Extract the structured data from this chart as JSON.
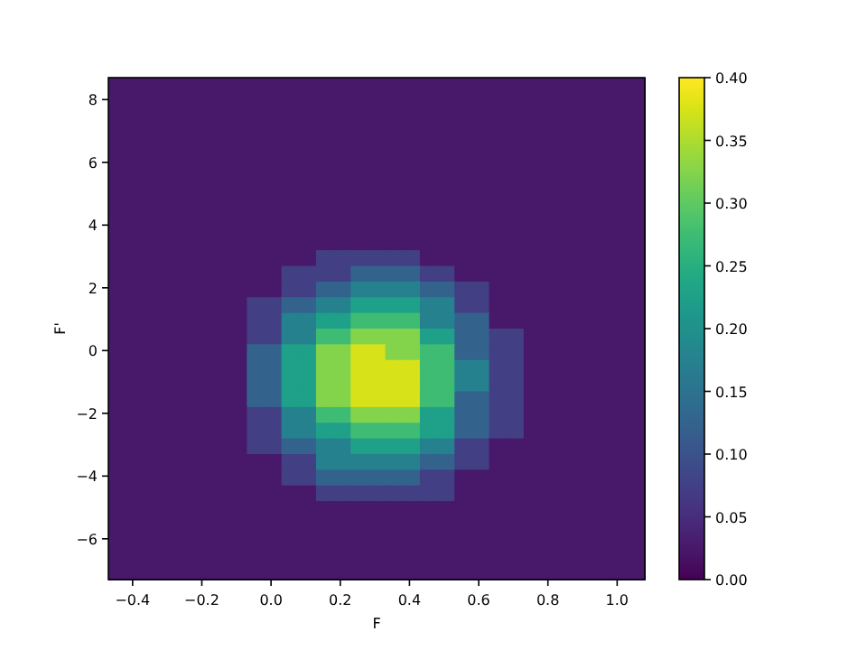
{
  "chart_data": {
    "type": "heatmap",
    "xlabel": "F",
    "ylabel": "F'",
    "xlim": [
      -0.47,
      1.08
    ],
    "ylim": [
      -7.3,
      8.7
    ],
    "xticks": [
      {
        "value": -0.4,
        "label": "−0.4"
      },
      {
        "value": -0.2,
        "label": "−0.2"
      },
      {
        "value": 0,
        "label": "0.0"
      },
      {
        "value": 0.2,
        "label": "0.2"
      },
      {
        "value": 0.4,
        "label": "0.4"
      },
      {
        "value": 0.6,
        "label": "0.6"
      },
      {
        "value": 0.8,
        "label": "0.8"
      },
      {
        "value": 1,
        "label": "1.0"
      }
    ],
    "yticks": [
      {
        "value": -6,
        "label": "−6"
      },
      {
        "value": -4,
        "label": "−4"
      },
      {
        "value": -2,
        "label": "−2"
      },
      0,
      2,
      4,
      6,
      8
    ],
    "clim": [
      0,
      0.4
    ],
    "cticks": [
      {
        "value": 0,
        "label": "0.00"
      },
      {
        "value": 0.05,
        "label": "0.05"
      },
      {
        "value": 0.1,
        "label": "0.10"
      },
      {
        "value": 0.15,
        "label": "0.15"
      },
      {
        "value": 0.2,
        "label": "0.20"
      },
      {
        "value": 0.25,
        "label": "0.25"
      },
      {
        "value": 0.3,
        "label": "0.30"
      },
      {
        "value": 0.35,
        "label": "0.35"
      },
      {
        "value": 0.4,
        "label": "0.40"
      }
    ],
    "x": [
      -0.445,
      -0.395,
      -0.345,
      -0.295,
      -0.245,
      -0.195,
      -0.145,
      -0.095,
      -0.045,
      0.005,
      0.055,
      0.105,
      0.155,
      0.205,
      0.255,
      0.305,
      0.355,
      0.405,
      0.455,
      0.505,
      0.555,
      0.605,
      0.655,
      0.705,
      0.755,
      0.805,
      0.855,
      0.905,
      0.955,
      1.005,
      1.055
    ],
    "y": [
      8.45,
      7.95,
      7.45,
      6.95,
      6.45,
      5.95,
      5.45,
      4.95,
      4.45,
      3.95,
      3.45,
      2.95,
      2.45,
      1.95,
      1.45,
      0.95,
      0.45,
      -0.05,
      -0.55,
      -1.05,
      -1.55,
      -2.05,
      -2.55,
      -3.05,
      -3.55,
      -4.05,
      -4.55,
      -5.05,
      -5.55,
      -6.05,
      -6.55,
      -7.05
    ],
    "cells": [
      [
        0.025,
        0.025,
        0.025,
        0.025,
        0.025,
        0.025,
        0.025,
        0.025,
        0.025,
        0.025,
        0.025,
        0.025,
        0.025,
        0.025,
        0.025,
        0.025,
        0.025,
        0.025,
        0.025,
        0.025,
        0.025,
        0.025,
        0.025,
        0.025,
        0.025,
        0.025,
        0.025,
        0.025,
        0.025,
        0.025,
        0.025
      ],
      [
        0.025,
        0.025,
        0.025,
        0.025,
        0.025,
        0.025,
        0.025,
        0.025,
        0.025,
        0.025,
        0.025,
        0.025,
        0.025,
        0.025,
        0.025,
        0.025,
        0.025,
        0.025,
        0.025,
        0.025,
        0.025,
        0.025,
        0.025,
        0.025,
        0.025,
        0.025,
        0.025,
        0.025,
        0.025,
        0.025,
        0.025
      ],
      [
        0.025,
        0.025,
        0.025,
        0.025,
        0.025,
        0.025,
        0.025,
        0.025,
        0.025,
        0.025,
        0.025,
        0.025,
        0.025,
        0.025,
        0.025,
        0.025,
        0.025,
        0.025,
        0.025,
        0.025,
        0.025,
        0.025,
        0.025,
        0.025,
        0.025,
        0.025,
        0.025,
        0.025,
        0.025,
        0.025,
        0.025
      ],
      [
        0.025,
        0.025,
        0.025,
        0.025,
        0.025,
        0.025,
        0.025,
        0.025,
        0.025,
        0.025,
        0.025,
        0.025,
        0.025,
        0.025,
        0.025,
        0.025,
        0.025,
        0.025,
        0.025,
        0.025,
        0.025,
        0.025,
        0.025,
        0.025,
        0.025,
        0.025,
        0.025,
        0.025,
        0.025,
        0.025,
        0.025
      ],
      [
        0.025,
        0.025,
        0.025,
        0.025,
        0.025,
        0.025,
        0.025,
        0.025,
        0.025,
        0.025,
        0.025,
        0.025,
        0.025,
        0.025,
        0.025,
        0.025,
        0.025,
        0.025,
        0.025,
        0.025,
        0.025,
        0.025,
        0.025,
        0.025,
        0.025,
        0.025,
        0.025,
        0.025,
        0.025,
        0.025,
        0.025
      ],
      [
        0.025,
        0.025,
        0.025,
        0.025,
        0.025,
        0.025,
        0.025,
        0.025,
        0.025,
        0.025,
        0.025,
        0.025,
        0.025,
        0.025,
        0.025,
        0.025,
        0.025,
        0.025,
        0.025,
        0.025,
        0.025,
        0.025,
        0.025,
        0.025,
        0.025,
        0.025,
        0.025,
        0.025,
        0.025,
        0.025,
        0.025
      ],
      [
        0.025,
        0.025,
        0.025,
        0.025,
        0.025,
        0.025,
        0.025,
        0.025,
        0.025,
        0.025,
        0.025,
        0.025,
        0.025,
        0.025,
        0.025,
        0.025,
        0.025,
        0.025,
        0.025,
        0.025,
        0.025,
        0.025,
        0.025,
        0.025,
        0.025,
        0.025,
        0.025,
        0.025,
        0.025,
        0.025,
        0.025
      ],
      [
        0.025,
        0.025,
        0.025,
        0.025,
        0.025,
        0.025,
        0.025,
        0.025,
        0.025,
        0.025,
        0.025,
        0.025,
        0.025,
        0.025,
        0.025,
        0.025,
        0.025,
        0.025,
        0.025,
        0.025,
        0.025,
        0.025,
        0.025,
        0.025,
        0.025,
        0.025,
        0.025,
        0.025,
        0.025,
        0.025,
        0.025
      ],
      [
        0.025,
        0.025,
        0.025,
        0.025,
        0.025,
        0.025,
        0.025,
        0.025,
        0.025,
        0.025,
        0.025,
        0.025,
        0.025,
        0.025,
        0.025,
        0.025,
        0.025,
        0.025,
        0.025,
        0.025,
        0.025,
        0.025,
        0.025,
        0.025,
        0.025,
        0.025,
        0.025,
        0.025,
        0.025,
        0.025,
        0.025
      ],
      [
        0.025,
        0.025,
        0.025,
        0.025,
        0.025,
        0.025,
        0.025,
        0.025,
        0.025,
        0.025,
        0.025,
        0.025,
        0.025,
        0.025,
        0.025,
        0.025,
        0.025,
        0.025,
        0.025,
        0.025,
        0.025,
        0.025,
        0.025,
        0.025,
        0.025,
        0.025,
        0.025,
        0.025,
        0.025,
        0.025,
        0.025
      ],
      [
        0.025,
        0.025,
        0.025,
        0.025,
        0.025,
        0.025,
        0.025,
        0.025,
        0.025,
        0.025,
        0.025,
        0.025,
        0.025,
        0.025,
        0.025,
        0.025,
        0.025,
        0.025,
        0.025,
        0.025,
        0.025,
        0.025,
        0.025,
        0.025,
        0.025,
        0.025,
        0.025,
        0.025,
        0.025,
        0.025,
        0.025
      ],
      [
        0.025,
        0.025,
        0.025,
        0.025,
        0.025,
        0.025,
        0.025,
        0.025,
        0.025,
        0.025,
        0.025,
        0.025,
        0.075,
        0.075,
        0.075,
        0.075,
        0.075,
        0.075,
        0.025,
        0.025,
        0.025,
        0.025,
        0.025,
        0.025,
        0.025,
        0.025,
        0.025,
        0.025,
        0.025,
        0.025,
        0.025
      ],
      [
        0.025,
        0.025,
        0.025,
        0.025,
        0.025,
        0.025,
        0.025,
        0.025,
        0.025,
        0.025,
        0.075,
        0.075,
        0.075,
        0.075,
        0.125,
        0.125,
        0.125,
        0.125,
        0.075,
        0.075,
        0.025,
        0.025,
        0.025,
        0.025,
        0.025,
        0.025,
        0.025,
        0.025,
        0.025,
        0.025,
        0.025
      ],
      [
        0.025,
        0.025,
        0.025,
        0.025,
        0.025,
        0.025,
        0.025,
        0.025,
        0.025,
        0.025,
        0.075,
        0.075,
        0.125,
        0.125,
        0.175,
        0.175,
        0.175,
        0.175,
        0.125,
        0.125,
        0.075,
        0.075,
        0.025,
        0.025,
        0.025,
        0.025,
        0.025,
        0.025,
        0.025,
        0.025,
        0.025
      ],
      [
        0.025,
        0.025,
        0.025,
        0.025,
        0.025,
        0.025,
        0.025,
        0.025,
        0.075,
        0.075,
        0.125,
        0.125,
        0.175,
        0.175,
        0.225,
        0.225,
        0.225,
        0.225,
        0.175,
        0.175,
        0.075,
        0.075,
        0.025,
        0.025,
        0.025,
        0.025,
        0.025,
        0.025,
        0.025,
        0.025,
        0.025
      ],
      [
        0.025,
        0.025,
        0.025,
        0.025,
        0.025,
        0.025,
        0.025,
        0.025,
        0.075,
        0.075,
        0.175,
        0.175,
        0.225,
        0.225,
        0.275,
        0.275,
        0.275,
        0.275,
        0.175,
        0.175,
        0.125,
        0.125,
        0.025,
        0.025,
        0.025,
        0.025,
        0.025,
        0.025,
        0.025,
        0.025,
        0.025
      ],
      [
        0.025,
        0.025,
        0.025,
        0.025,
        0.025,
        0.025,
        0.025,
        0.025,
        0.075,
        0.075,
        0.175,
        0.175,
        0.275,
        0.275,
        0.325,
        0.325,
        0.325,
        0.325,
        0.225,
        0.225,
        0.125,
        0.125,
        0.075,
        0.075,
        0.025,
        0.025,
        0.025,
        0.025,
        0.025,
        0.025,
        0.025
      ],
      [
        0.025,
        0.025,
        0.025,
        0.025,
        0.025,
        0.025,
        0.025,
        0.025,
        0.125,
        0.125,
        0.225,
        0.225,
        0.325,
        0.325,
        0.375,
        0.375,
        0.325,
        0.325,
        0.275,
        0.275,
        0.125,
        0.125,
        0.075,
        0.075,
        0.025,
        0.025,
        0.025,
        0.025,
        0.025,
        0.025,
        0.025
      ],
      [
        0.025,
        0.025,
        0.025,
        0.025,
        0.025,
        0.025,
        0.025,
        0.025,
        0.125,
        0.125,
        0.225,
        0.225,
        0.325,
        0.325,
        0.375,
        0.375,
        0.375,
        0.375,
        0.275,
        0.275,
        0.175,
        0.175,
        0.075,
        0.075,
        0.025,
        0.025,
        0.025,
        0.025,
        0.025,
        0.025,
        0.025
      ],
      [
        0.025,
        0.025,
        0.025,
        0.025,
        0.025,
        0.025,
        0.025,
        0.025,
        0.125,
        0.125,
        0.225,
        0.225,
        0.325,
        0.325,
        0.375,
        0.375,
        0.375,
        0.375,
        0.275,
        0.275,
        0.175,
        0.175,
        0.075,
        0.075,
        0.025,
        0.025,
        0.025,
        0.025,
        0.025,
        0.025,
        0.025
      ],
      [
        0.025,
        0.025,
        0.025,
        0.025,
        0.025,
        0.025,
        0.025,
        0.025,
        0.125,
        0.125,
        0.225,
        0.225,
        0.325,
        0.325,
        0.375,
        0.375,
        0.375,
        0.375,
        0.275,
        0.275,
        0.125,
        0.125,
        0.075,
        0.075,
        0.025,
        0.025,
        0.025,
        0.025,
        0.025,
        0.025,
        0.025
      ],
      [
        0.025,
        0.025,
        0.025,
        0.025,
        0.025,
        0.025,
        0.025,
        0.025,
        0.075,
        0.075,
        0.175,
        0.175,
        0.275,
        0.275,
        0.325,
        0.325,
        0.325,
        0.325,
        0.225,
        0.225,
        0.125,
        0.125,
        0.075,
        0.075,
        0.025,
        0.025,
        0.025,
        0.025,
        0.025,
        0.025,
        0.025
      ],
      [
        0.025,
        0.025,
        0.025,
        0.025,
        0.025,
        0.025,
        0.025,
        0.025,
        0.075,
        0.075,
        0.175,
        0.175,
        0.225,
        0.225,
        0.275,
        0.275,
        0.275,
        0.275,
        0.225,
        0.225,
        0.125,
        0.125,
        0.075,
        0.075,
        0.025,
        0.025,
        0.025,
        0.025,
        0.025,
        0.025,
        0.025
      ],
      [
        0.025,
        0.025,
        0.025,
        0.025,
        0.025,
        0.025,
        0.025,
        0.025,
        0.075,
        0.075,
        0.125,
        0.125,
        0.175,
        0.175,
        0.225,
        0.225,
        0.225,
        0.225,
        0.175,
        0.175,
        0.075,
        0.075,
        0.025,
        0.025,
        0.025,
        0.025,
        0.025,
        0.025,
        0.025,
        0.025,
        0.025
      ],
      [
        0.025,
        0.025,
        0.025,
        0.025,
        0.025,
        0.025,
        0.025,
        0.025,
        0.025,
        0.025,
        0.075,
        0.075,
        0.175,
        0.175,
        0.175,
        0.175,
        0.175,
        0.175,
        0.125,
        0.125,
        0.075,
        0.075,
        0.025,
        0.025,
        0.025,
        0.025,
        0.025,
        0.025,
        0.025,
        0.025,
        0.025
      ],
      [
        0.025,
        0.025,
        0.025,
        0.025,
        0.025,
        0.025,
        0.025,
        0.025,
        0.025,
        0.025,
        0.075,
        0.075,
        0.125,
        0.125,
        0.125,
        0.125,
        0.125,
        0.125,
        0.075,
        0.075,
        0.025,
        0.025,
        0.025,
        0.025,
        0.025,
        0.025,
        0.025,
        0.025,
        0.025,
        0.025,
        0.025
      ],
      [
        0.025,
        0.025,
        0.025,
        0.025,
        0.025,
        0.025,
        0.025,
        0.025,
        0.025,
        0.025,
        0.025,
        0.025,
        0.075,
        0.075,
        0.075,
        0.075,
        0.075,
        0.075,
        0.075,
        0.075,
        0.025,
        0.025,
        0.025,
        0.025,
        0.025,
        0.025,
        0.025,
        0.025,
        0.025,
        0.025,
        0.025
      ],
      [
        0.025,
        0.025,
        0.025,
        0.025,
        0.025,
        0.025,
        0.025,
        0.025,
        0.025,
        0.025,
        0.025,
        0.025,
        0.025,
        0.025,
        0.025,
        0.025,
        0.025,
        0.025,
        0.025,
        0.025,
        0.025,
        0.025,
        0.025,
        0.025,
        0.025,
        0.025,
        0.025,
        0.025,
        0.025,
        0.025,
        0.025
      ],
      [
        0.025,
        0.025,
        0.025,
        0.025,
        0.025,
        0.025,
        0.025,
        0.025,
        0.025,
        0.025,
        0.025,
        0.025,
        0.025,
        0.025,
        0.025,
        0.025,
        0.025,
        0.025,
        0.025,
        0.025,
        0.025,
        0.025,
        0.025,
        0.025,
        0.025,
        0.025,
        0.025,
        0.025,
        0.025,
        0.025,
        0.025
      ],
      [
        0.025,
        0.025,
        0.025,
        0.025,
        0.025,
        0.025,
        0.025,
        0.025,
        0.025,
        0.025,
        0.025,
        0.025,
        0.025,
        0.025,
        0.025,
        0.025,
        0.025,
        0.025,
        0.025,
        0.025,
        0.025,
        0.025,
        0.025,
        0.025,
        0.025,
        0.025,
        0.025,
        0.025,
        0.025,
        0.025,
        0.025
      ],
      [
        0.025,
        0.025,
        0.025,
        0.025,
        0.025,
        0.025,
        0.025,
        0.025,
        0.025,
        0.025,
        0.025,
        0.025,
        0.025,
        0.025,
        0.025,
        0.025,
        0.025,
        0.025,
        0.025,
        0.025,
        0.025,
        0.025,
        0.025,
        0.025,
        0.025,
        0.025,
        0.025,
        0.025,
        0.025,
        0.025,
        0.025
      ],
      [
        0.025,
        0.025,
        0.025,
        0.025,
        0.025,
        0.025,
        0.025,
        0.025,
        0.025,
        0.025,
        0.025,
        0.025,
        0.025,
        0.025,
        0.025,
        0.025,
        0.025,
        0.025,
        0.025,
        0.025,
        0.025,
        0.025,
        0.025,
        0.025,
        0.025,
        0.025,
        0.025,
        0.025,
        0.025,
        0.025,
        0.025
      ]
    ]
  }
}
